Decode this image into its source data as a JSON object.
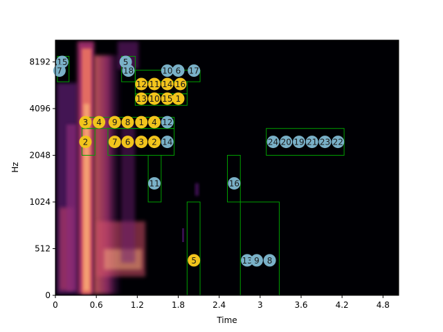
{
  "chart_data": {
    "type": "heatmap",
    "title": "",
    "xlabel": "Time",
    "ylabel": "Hz",
    "xlim": [
      0,
      5.03
    ],
    "y_scale": "log2",
    "y_axis_ticks": [
      "0",
      "512",
      "1024",
      "2048",
      "4096",
      "8192"
    ],
    "x_ticks": [
      "0",
      "0.6",
      "1.2",
      "1.8",
      "2.4",
      "3",
      "3.6",
      "4.2",
      "4.8"
    ],
    "x_tick_values": [
      0,
      0.6,
      1.2,
      1.8,
      2.4,
      3.0,
      3.6,
      4.2,
      4.8
    ],
    "colors": {
      "background": "#000004",
      "box": "#00a000",
      "marker_yellow": "#f2c41c",
      "marker_blue": "#7ab1c8"
    },
    "regions": [
      {
        "t0": 0.03,
        "t1": 0.2,
        "f0": 6100,
        "f1": 8900
      },
      {
        "t0": 0.97,
        "t1": 1.17,
        "f0": 6100,
        "f1": 8900
      },
      {
        "t0": 1.17,
        "t1": 2.12,
        "f0": 6100,
        "f1": 7250
      },
      {
        "t0": 1.17,
        "t1": 1.93,
        "f0": 5100,
        "f1": 6100
      },
      {
        "t0": 1.17,
        "t1": 1.93,
        "f0": 4300,
        "f1": 5100
      },
      {
        "t0": 0.39,
        "t1": 1.74,
        "f0": 3050,
        "f1": 3600
      },
      {
        "t0": 0.39,
        "t1": 0.58,
        "f0": 2048,
        "f1": 3050
      },
      {
        "t0": 0.77,
        "t1": 1.74,
        "f0": 2048,
        "f1": 3050
      },
      {
        "t0": 1.36,
        "t1": 1.55,
        "f0": 1024,
        "f1": 2048
      },
      {
        "t0": 2.52,
        "t1": 2.71,
        "f0": 1024,
        "f1": 2048
      },
      {
        "t0": 3.09,
        "t1": 4.23,
        "f0": 2048,
        "f1": 3050
      },
      {
        "t0": 1.93,
        "t1": 2.12,
        "f0": 0,
        "f1": 1024
      },
      {
        "t0": 2.71,
        "t1": 3.28,
        "f0": 0,
        "f1": 1024
      }
    ],
    "markers": [
      {
        "label": "15",
        "t": 0.1,
        "y": 8192,
        "color": "blue"
      },
      {
        "label": "7",
        "t": 0.06,
        "y": 7200,
        "color": "blue"
      },
      {
        "label": "5",
        "t": 1.03,
        "y": 8192,
        "color": "blue"
      },
      {
        "label": "18",
        "t": 1.07,
        "y": 7200,
        "color": "blue"
      },
      {
        "label": "10",
        "t": 1.64,
        "y": 7200,
        "color": "blue"
      },
      {
        "label": "6",
        "t": 1.8,
        "y": 7200,
        "color": "blue"
      },
      {
        "label": "17",
        "t": 2.03,
        "y": 7200,
        "color": "blue"
      },
      {
        "label": "12",
        "t": 1.26,
        "y": 5900,
        "color": "yellow"
      },
      {
        "label": "11",
        "t": 1.45,
        "y": 5900,
        "color": "yellow"
      },
      {
        "label": "14",
        "t": 1.64,
        "y": 5900,
        "color": "yellow"
      },
      {
        "label": "16",
        "t": 1.83,
        "y": 5900,
        "color": "yellow"
      },
      {
        "label": "13",
        "t": 1.26,
        "y": 4750,
        "color": "yellow"
      },
      {
        "label": "10",
        "t": 1.45,
        "y": 4750,
        "color": "yellow"
      },
      {
        "label": "15",
        "t": 1.64,
        "y": 4750,
        "color": "yellow"
      },
      {
        "label": "1",
        "t": 1.8,
        "y": 4750,
        "color": "yellow"
      },
      {
        "label": "3",
        "t": 0.44,
        "y": 3350,
        "color": "yellow"
      },
      {
        "label": "4",
        "t": 0.64,
        "y": 3350,
        "color": "yellow"
      },
      {
        "label": "9",
        "t": 0.87,
        "y": 3350,
        "color": "yellow"
      },
      {
        "label": "8",
        "t": 1.06,
        "y": 3350,
        "color": "yellow"
      },
      {
        "label": "1",
        "t": 1.26,
        "y": 3350,
        "color": "yellow"
      },
      {
        "label": "4",
        "t": 1.45,
        "y": 3350,
        "color": "yellow"
      },
      {
        "label": "12",
        "t": 1.64,
        "y": 3350,
        "color": "blue"
      },
      {
        "label": "2",
        "t": 0.44,
        "y": 2500,
        "color": "yellow"
      },
      {
        "label": "7",
        "t": 0.87,
        "y": 2500,
        "color": "yellow"
      },
      {
        "label": "6",
        "t": 1.06,
        "y": 2500,
        "color": "yellow"
      },
      {
        "label": "3",
        "t": 1.26,
        "y": 2500,
        "color": "yellow"
      },
      {
        "label": "2",
        "t": 1.45,
        "y": 2500,
        "color": "yellow"
      },
      {
        "label": "14",
        "t": 1.64,
        "y": 2500,
        "color": "blue"
      },
      {
        "label": "11",
        "t": 1.45,
        "y": 1350,
        "color": "blue"
      },
      {
        "label": "16",
        "t": 2.62,
        "y": 1350,
        "color": "blue"
      },
      {
        "label": "24",
        "t": 3.19,
        "y": 2500,
        "color": "blue"
      },
      {
        "label": "20",
        "t": 3.38,
        "y": 2500,
        "color": "blue"
      },
      {
        "label": "19",
        "t": 3.57,
        "y": 2500,
        "color": "blue"
      },
      {
        "label": "21",
        "t": 3.76,
        "y": 2500,
        "color": "blue"
      },
      {
        "label": "23",
        "t": 3.95,
        "y": 2500,
        "color": "blue"
      },
      {
        "label": "22",
        "t": 4.14,
        "y": 2500,
        "color": "blue"
      },
      {
        "label": "5",
        "t": 2.03,
        "y": 384,
        "color": "yellow"
      },
      {
        "label": "13",
        "t": 2.81,
        "y": 384,
        "color": "blue"
      },
      {
        "label": "9",
        "t": 2.95,
        "y": 384,
        "color": "blue"
      },
      {
        "label": "8",
        "t": 3.14,
        "y": 384,
        "color": "blue"
      }
    ]
  }
}
